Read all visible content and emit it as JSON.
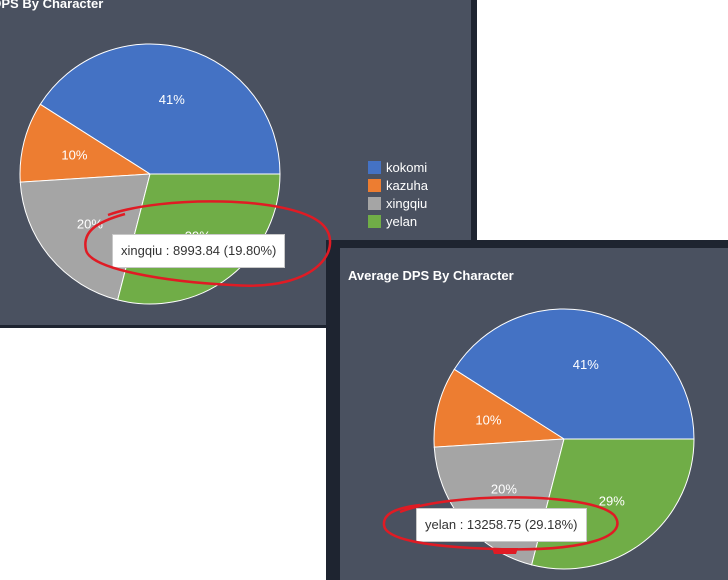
{
  "panel_back": {
    "title": "DPS By Character",
    "tooltip": "xingqiu : 8993.84 (19.80%)"
  },
  "panel_front": {
    "title": "Average DPS By Character",
    "tooltip": "yelan : 13258.75 (29.18%)"
  },
  "chart_data": [
    {
      "type": "pie",
      "title": "DPS By Character",
      "categories": [
        "kokomi",
        "kazuha",
        "xingqiu",
        "yelan"
      ],
      "values": [
        41,
        10,
        20,
        29
      ],
      "labels": [
        "41%",
        "10%",
        "20%",
        "29%"
      ],
      "colors": [
        "#4472c4",
        "#ed7d31",
        "#a5a5a5",
        "#70ad47"
      ],
      "legend": "right"
    },
    {
      "type": "pie",
      "title": "Average DPS By Character",
      "categories": [
        "kokomi",
        "kazuha",
        "xingqiu",
        "yelan"
      ],
      "values": [
        41,
        10,
        20,
        29
      ],
      "labels": [
        "41%",
        "10%",
        "20%",
        "29%"
      ],
      "colors": [
        "#4472c4",
        "#ed7d31",
        "#a5a5a5",
        "#70ad47"
      ]
    }
  ]
}
